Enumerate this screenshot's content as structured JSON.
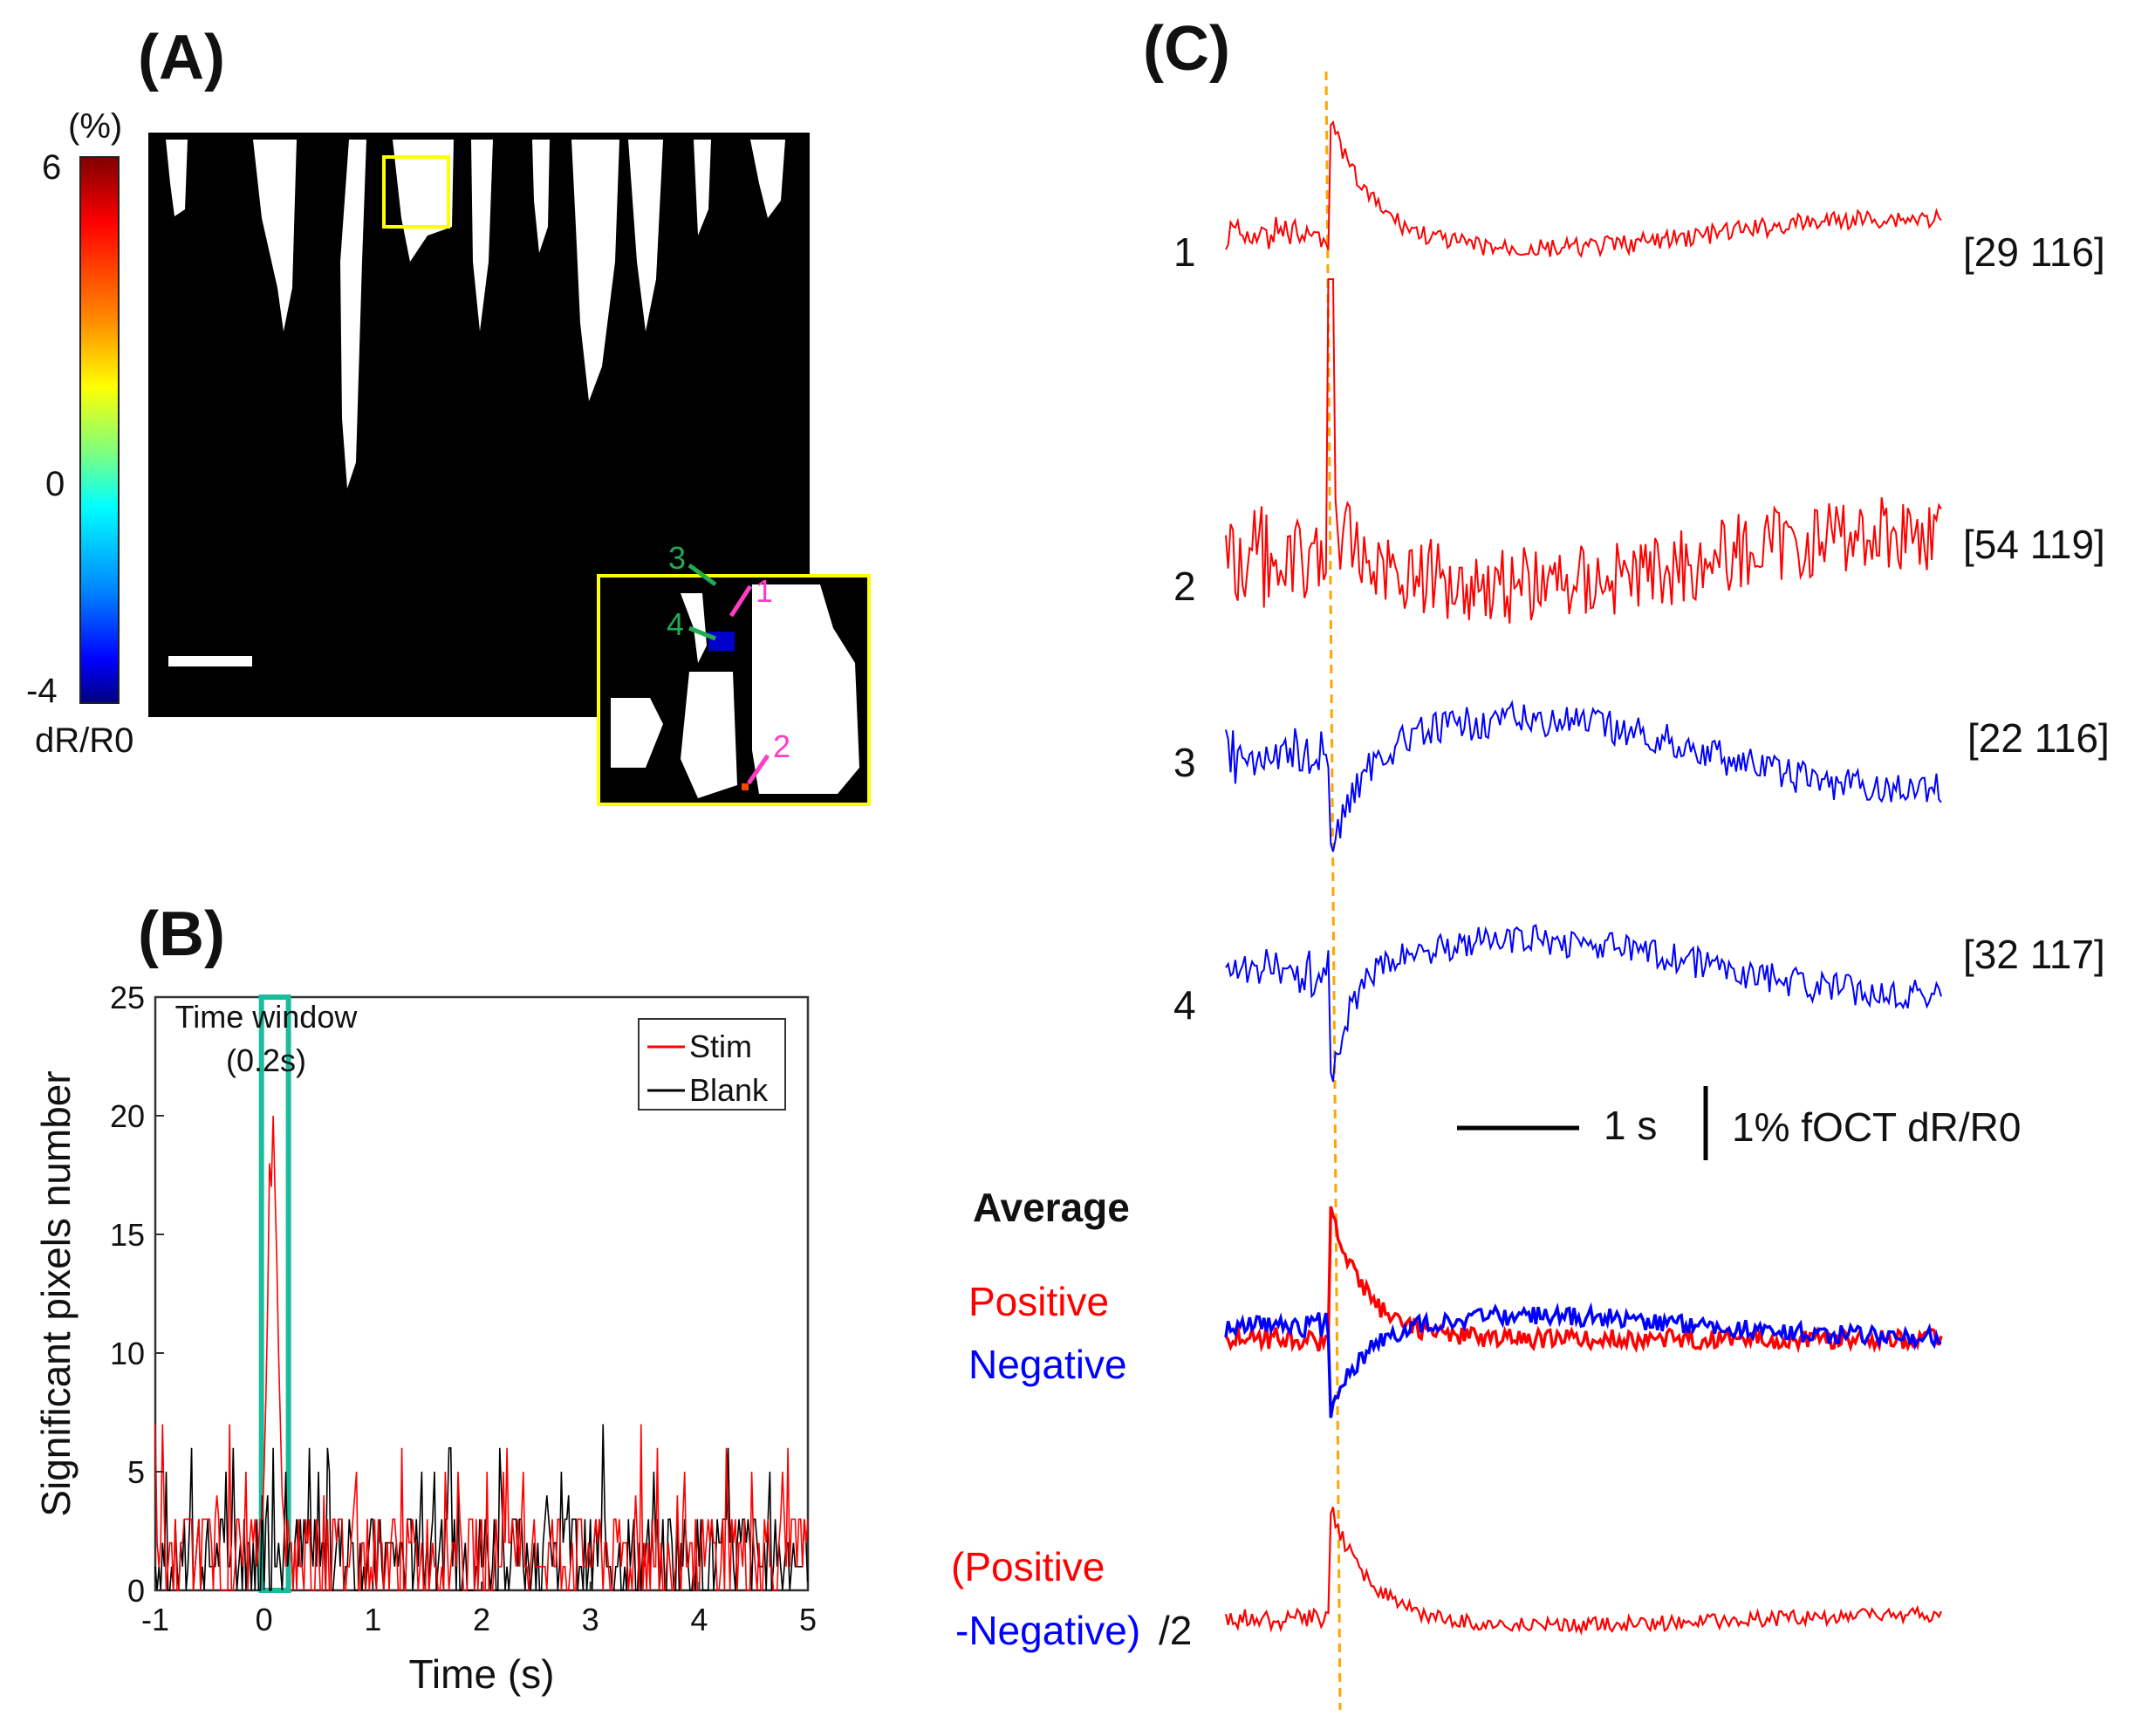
{
  "panels": {
    "a": {
      "label": "(A)"
    },
    "b": {
      "label": "(B)"
    },
    "c": {
      "label": "(C)"
    }
  },
  "colorbar": {
    "unit": "(%)",
    "ticks": [
      "6",
      "0",
      "-4"
    ],
    "label": "dR/R0",
    "colormap": "jet"
  },
  "inset": {
    "markers": [
      {
        "id": "1",
        "color": "#ff3cc8"
      },
      {
        "id": "2",
        "color": "#ff3cc8"
      },
      {
        "id": "3",
        "color": "#22aa55"
      },
      {
        "id": "4",
        "color": "#22aa55"
      }
    ]
  },
  "chart_data": [
    {
      "type": "line",
      "panel": "B",
      "xlabel": "Time (s)",
      "ylabel": "Significant pixels number",
      "xlim": [
        -1,
        5
      ],
      "ylim": [
        0,
        25
      ],
      "xticks": [
        "-1",
        "0",
        "1",
        "2",
        "3",
        "4",
        "5"
      ],
      "yticks": [
        "0",
        "5",
        "10",
        "15",
        "20",
        "25"
      ],
      "annotation": {
        "line1": "Time window",
        "line2": "(0.2s)",
        "x_start": 0,
        "x_end": 0.2
      },
      "series": [
        {
          "name": "Stim",
          "color": "#ff0000",
          "peak_x": 0.08,
          "peak_value": 21,
          "baseline": 2
        },
        {
          "name": "Blank",
          "color": "#000000",
          "baseline": 2
        }
      ]
    },
    {
      "type": "line",
      "panel": "C",
      "stimulus_line_color": "#ffa500",
      "traces": [
        {
          "id": "1",
          "coords": "[29 116]",
          "color": "#ff0000",
          "polarity": "positive"
        },
        {
          "id": "2",
          "coords": "[54 119]",
          "color": "#ff0000",
          "polarity": "positive"
        },
        {
          "id": "3",
          "coords": "[22 116]",
          "color": "#0000ff",
          "polarity": "negative"
        },
        {
          "id": "4",
          "coords": "[32 117]",
          "color": "#0000ff",
          "polarity": "negative"
        }
      ],
      "scalebar": {
        "time": "1 s",
        "amplitude": "1% fOCT dR/R0"
      },
      "average": {
        "title": "Average",
        "positive_label": "Positive",
        "negative_label": "Negative",
        "positive_color": "#ff0000",
        "negative_color": "#0000ff"
      },
      "difference": {
        "label_line1": "(Positive",
        "label_line2": "-Negative)",
        "label_suffix": "/2"
      }
    }
  ]
}
